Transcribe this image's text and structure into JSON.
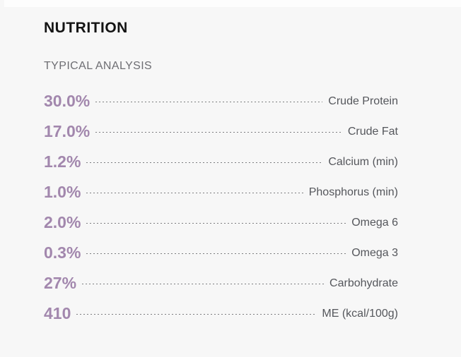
{
  "section": {
    "title": "NUTRITION",
    "subtitle": "TYPICAL ANALYSIS",
    "rows": [
      {
        "value": "30.0%",
        "label": "Crude Protein"
      },
      {
        "value": "17.0%",
        "label": "Crude Fat"
      },
      {
        "value": "1.2%",
        "label": "Calcium (min)"
      },
      {
        "value": "1.0%",
        "label": "Phosphorus (min)"
      },
      {
        "value": "2.0%",
        "label": "Omega 6"
      },
      {
        "value": "0.3%",
        "label": "Omega 3"
      },
      {
        "value": "27%",
        "label": "Carbohydrate"
      },
      {
        "value": "410",
        "label": "ME (kcal/100g)"
      }
    ],
    "colors": {
      "background": "#f7f7f7",
      "title": "#141414",
      "subtitle": "#6e6e73",
      "value_accent": "#a287ad",
      "label": "#55575c",
      "leader": "#7c7d7f"
    }
  }
}
